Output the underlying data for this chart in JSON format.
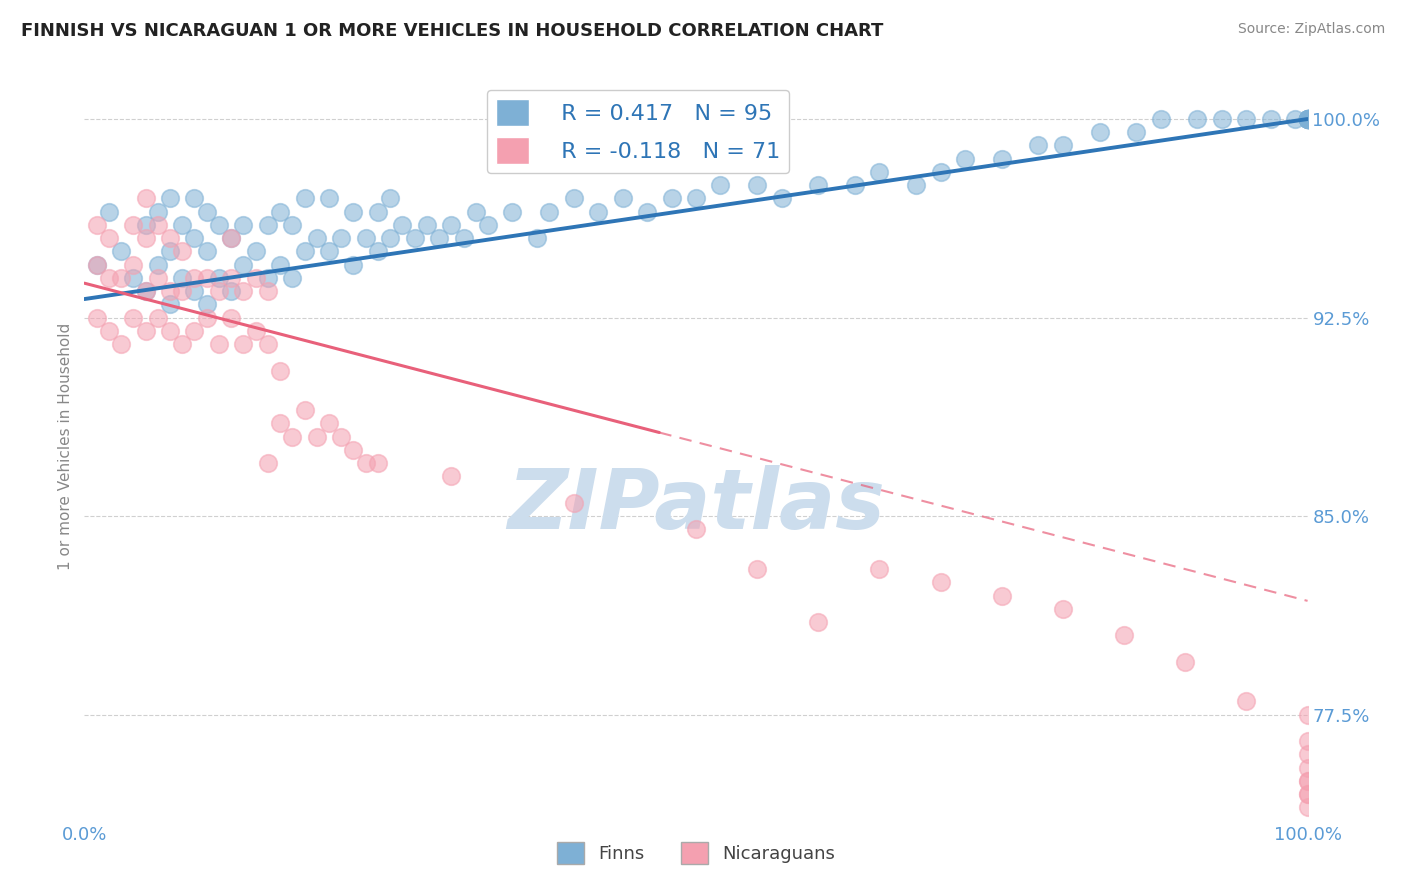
{
  "title": "FINNISH VS NICARAGUAN 1 OR MORE VEHICLES IN HOUSEHOLD CORRELATION CHART",
  "source_text": "Source: ZipAtlas.com",
  "ylabel": "1 or more Vehicles in Household",
  "xmin": 0.0,
  "xmax": 100.0,
  "ymin": 73.5,
  "ymax": 101.8,
  "yticks": [
    77.5,
    85.0,
    92.5,
    100.0
  ],
  "ytick_labels": [
    "77.5%",
    "85.0%",
    "92.5%",
    "100.0%"
  ],
  "xticks": [
    0.0,
    100.0
  ],
  "xtick_labels": [
    "0.0%",
    "100.0%"
  ],
  "axis_color": "#5b9bd5",
  "title_fontsize": 13,
  "watermark_text": "ZIPatlas",
  "watermark_color": "#ccdded",
  "legend_R1": "R = 0.417",
  "legend_N1": "N = 95",
  "legend_R2": "R = -0.118",
  "legend_N2": "N = 71",
  "finn_color": "#7eb0d5",
  "nica_color": "#f4a0b0",
  "finn_line_color": "#2e75b6",
  "nica_line_color": "#e8607a",
  "finn_line_start_x": 0.0,
  "finn_line_end_x": 100.0,
  "finn_line_start_y": 93.2,
  "finn_line_end_y": 100.0,
  "nica_line_solid_start_x": 0.0,
  "nica_line_solid_end_x": 47.0,
  "nica_line_dash_start_x": 47.0,
  "nica_line_dash_end_x": 100.0,
  "nica_line_start_y": 93.8,
  "nica_line_end_y": 81.8,
  "finn_scatter_x": [
    1,
    2,
    3,
    4,
    5,
    5,
    6,
    6,
    7,
    7,
    7,
    8,
    8,
    9,
    9,
    9,
    10,
    10,
    10,
    11,
    11,
    12,
    12,
    13,
    13,
    14,
    15,
    15,
    16,
    16,
    17,
    17,
    18,
    18,
    19,
    20,
    20,
    21,
    22,
    22,
    23,
    24,
    24,
    25,
    25,
    26,
    27,
    28,
    29,
    30,
    31,
    32,
    33,
    35,
    37,
    38,
    40,
    42,
    44,
    46,
    48,
    50,
    52,
    55,
    57,
    60,
    63,
    65,
    68,
    70,
    72,
    75,
    78,
    80,
    83,
    86,
    88,
    91,
    93,
    95,
    97,
    99,
    100,
    100,
    100,
    100,
    100,
    100,
    100,
    100,
    100,
    100,
    100,
    100,
    100
  ],
  "finn_scatter_y": [
    94.5,
    96.5,
    95.0,
    94.0,
    93.5,
    96.0,
    94.5,
    96.5,
    93.0,
    95.0,
    97.0,
    94.0,
    96.0,
    93.5,
    95.5,
    97.0,
    93.0,
    95.0,
    96.5,
    94.0,
    96.0,
    93.5,
    95.5,
    94.5,
    96.0,
    95.0,
    94.0,
    96.0,
    94.5,
    96.5,
    94.0,
    96.0,
    95.0,
    97.0,
    95.5,
    95.0,
    97.0,
    95.5,
    94.5,
    96.5,
    95.5,
    95.0,
    96.5,
    95.5,
    97.0,
    96.0,
    95.5,
    96.0,
    95.5,
    96.0,
    95.5,
    96.5,
    96.0,
    96.5,
    95.5,
    96.5,
    97.0,
    96.5,
    97.0,
    96.5,
    97.0,
    97.0,
    97.5,
    97.5,
    97.0,
    97.5,
    97.5,
    98.0,
    97.5,
    98.0,
    98.5,
    98.5,
    99.0,
    99.0,
    99.5,
    99.5,
    100.0,
    100.0,
    100.0,
    100.0,
    100.0,
    100.0,
    100.0,
    100.0,
    100.0,
    100.0,
    100.0,
    100.0,
    100.0,
    100.0,
    100.0,
    100.0,
    100.0,
    100.0,
    100.0
  ],
  "nica_scatter_x": [
    1,
    1,
    1,
    2,
    2,
    2,
    3,
    3,
    4,
    4,
    4,
    5,
    5,
    5,
    5,
    6,
    6,
    6,
    7,
    7,
    7,
    8,
    8,
    8,
    9,
    9,
    10,
    10,
    11,
    11,
    12,
    12,
    12,
    13,
    13,
    14,
    14,
    15,
    15,
    15,
    16,
    16,
    17,
    18,
    19,
    20,
    21,
    22,
    23,
    24,
    30,
    40,
    50,
    55,
    60,
    65,
    70,
    75,
    80,
    85,
    90,
    95,
    100,
    100,
    100,
    100,
    100,
    100,
    100,
    100,
    100
  ],
  "nica_scatter_y": [
    92.5,
    94.5,
    96.0,
    92.0,
    94.0,
    95.5,
    91.5,
    94.0,
    92.5,
    94.5,
    96.0,
    92.0,
    93.5,
    95.5,
    97.0,
    92.5,
    94.0,
    96.0,
    92.0,
    93.5,
    95.5,
    91.5,
    93.5,
    95.0,
    92.0,
    94.0,
    92.5,
    94.0,
    91.5,
    93.5,
    92.5,
    94.0,
    95.5,
    91.5,
    93.5,
    92.0,
    94.0,
    87.0,
    91.5,
    93.5,
    88.5,
    90.5,
    88.0,
    89.0,
    88.0,
    88.5,
    88.0,
    87.5,
    87.0,
    87.0,
    86.5,
    85.5,
    84.5,
    83.0,
    81.0,
    83.0,
    82.5,
    82.0,
    81.5,
    80.5,
    79.5,
    78.0,
    77.5,
    75.5,
    76.5,
    75.0,
    74.5,
    74.0,
    75.0,
    74.5,
    76.0
  ]
}
